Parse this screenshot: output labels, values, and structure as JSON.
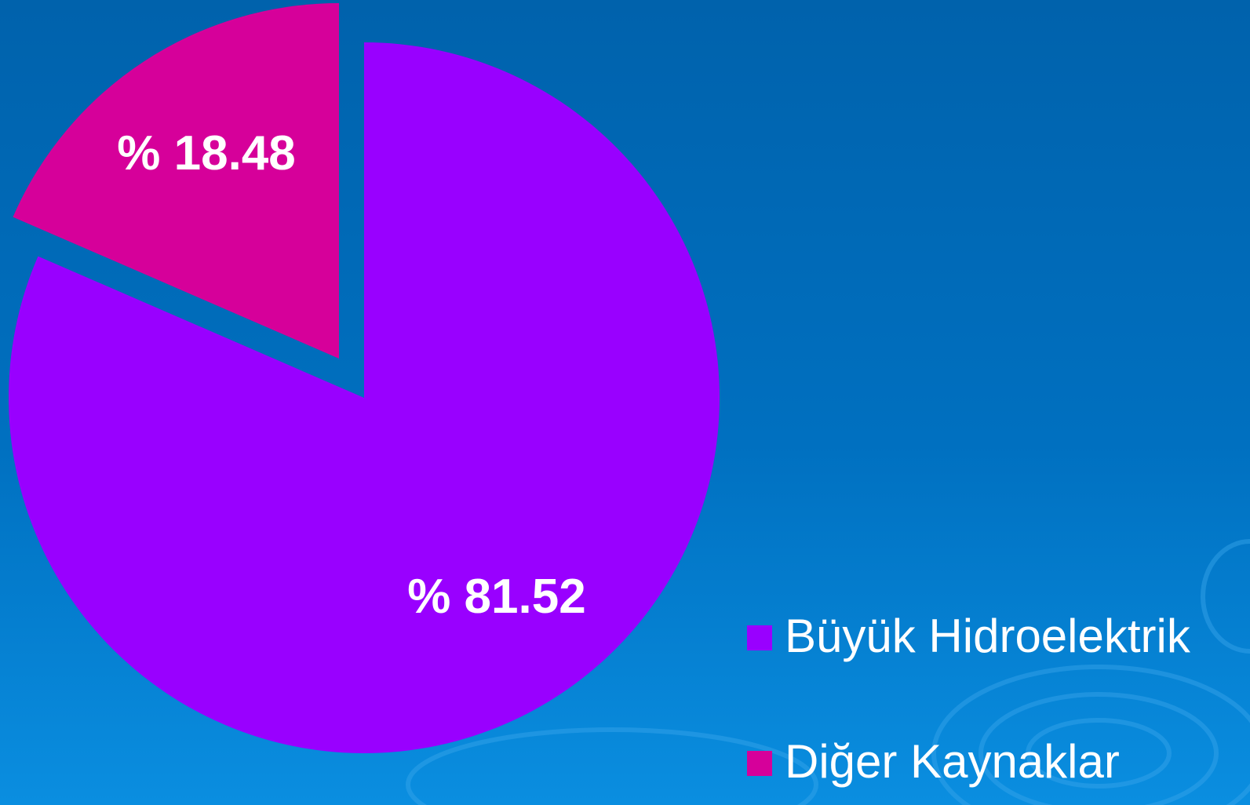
{
  "chart_data": {
    "type": "pie",
    "categories": [
      "Büyük Hidroelektrik",
      "Diğer Kaynaklar"
    ],
    "values": [
      81.52,
      18.48
    ],
    "value_labels": [
      "% 81.52",
      "% 18.48"
    ],
    "colors": [
      "#9900ff",
      "#d6009a"
    ],
    "legend": "right"
  }
}
